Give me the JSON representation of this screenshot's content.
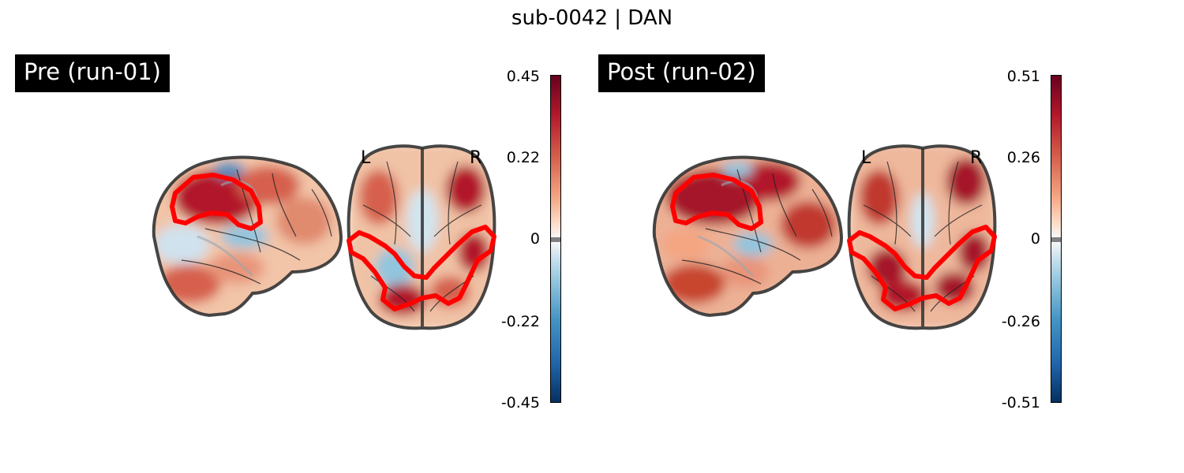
{
  "figure": {
    "title": "sub-0042 | DAN"
  },
  "panels": [
    {
      "label": "Pre (run-01)",
      "orientation": {
        "left": "L",
        "right": "R"
      },
      "colorbar": {
        "ticks": [
          "0.45",
          "0.22",
          "0",
          "-0.22",
          "-0.45"
        ],
        "min": -0.45,
        "max": 0.45,
        "colormap": "RdBu_r"
      },
      "contour_color": "#ff0000"
    },
    {
      "label": "Post (run-02)",
      "orientation": {
        "left": "L",
        "right": "R"
      },
      "colorbar": {
        "ticks": [
          "0.51",
          "0.26",
          "0",
          "-0.26",
          "-0.51"
        ],
        "min": -0.51,
        "max": 0.51,
        "colormap": "RdBu_r"
      },
      "contour_color": "#ff0000"
    }
  ]
}
